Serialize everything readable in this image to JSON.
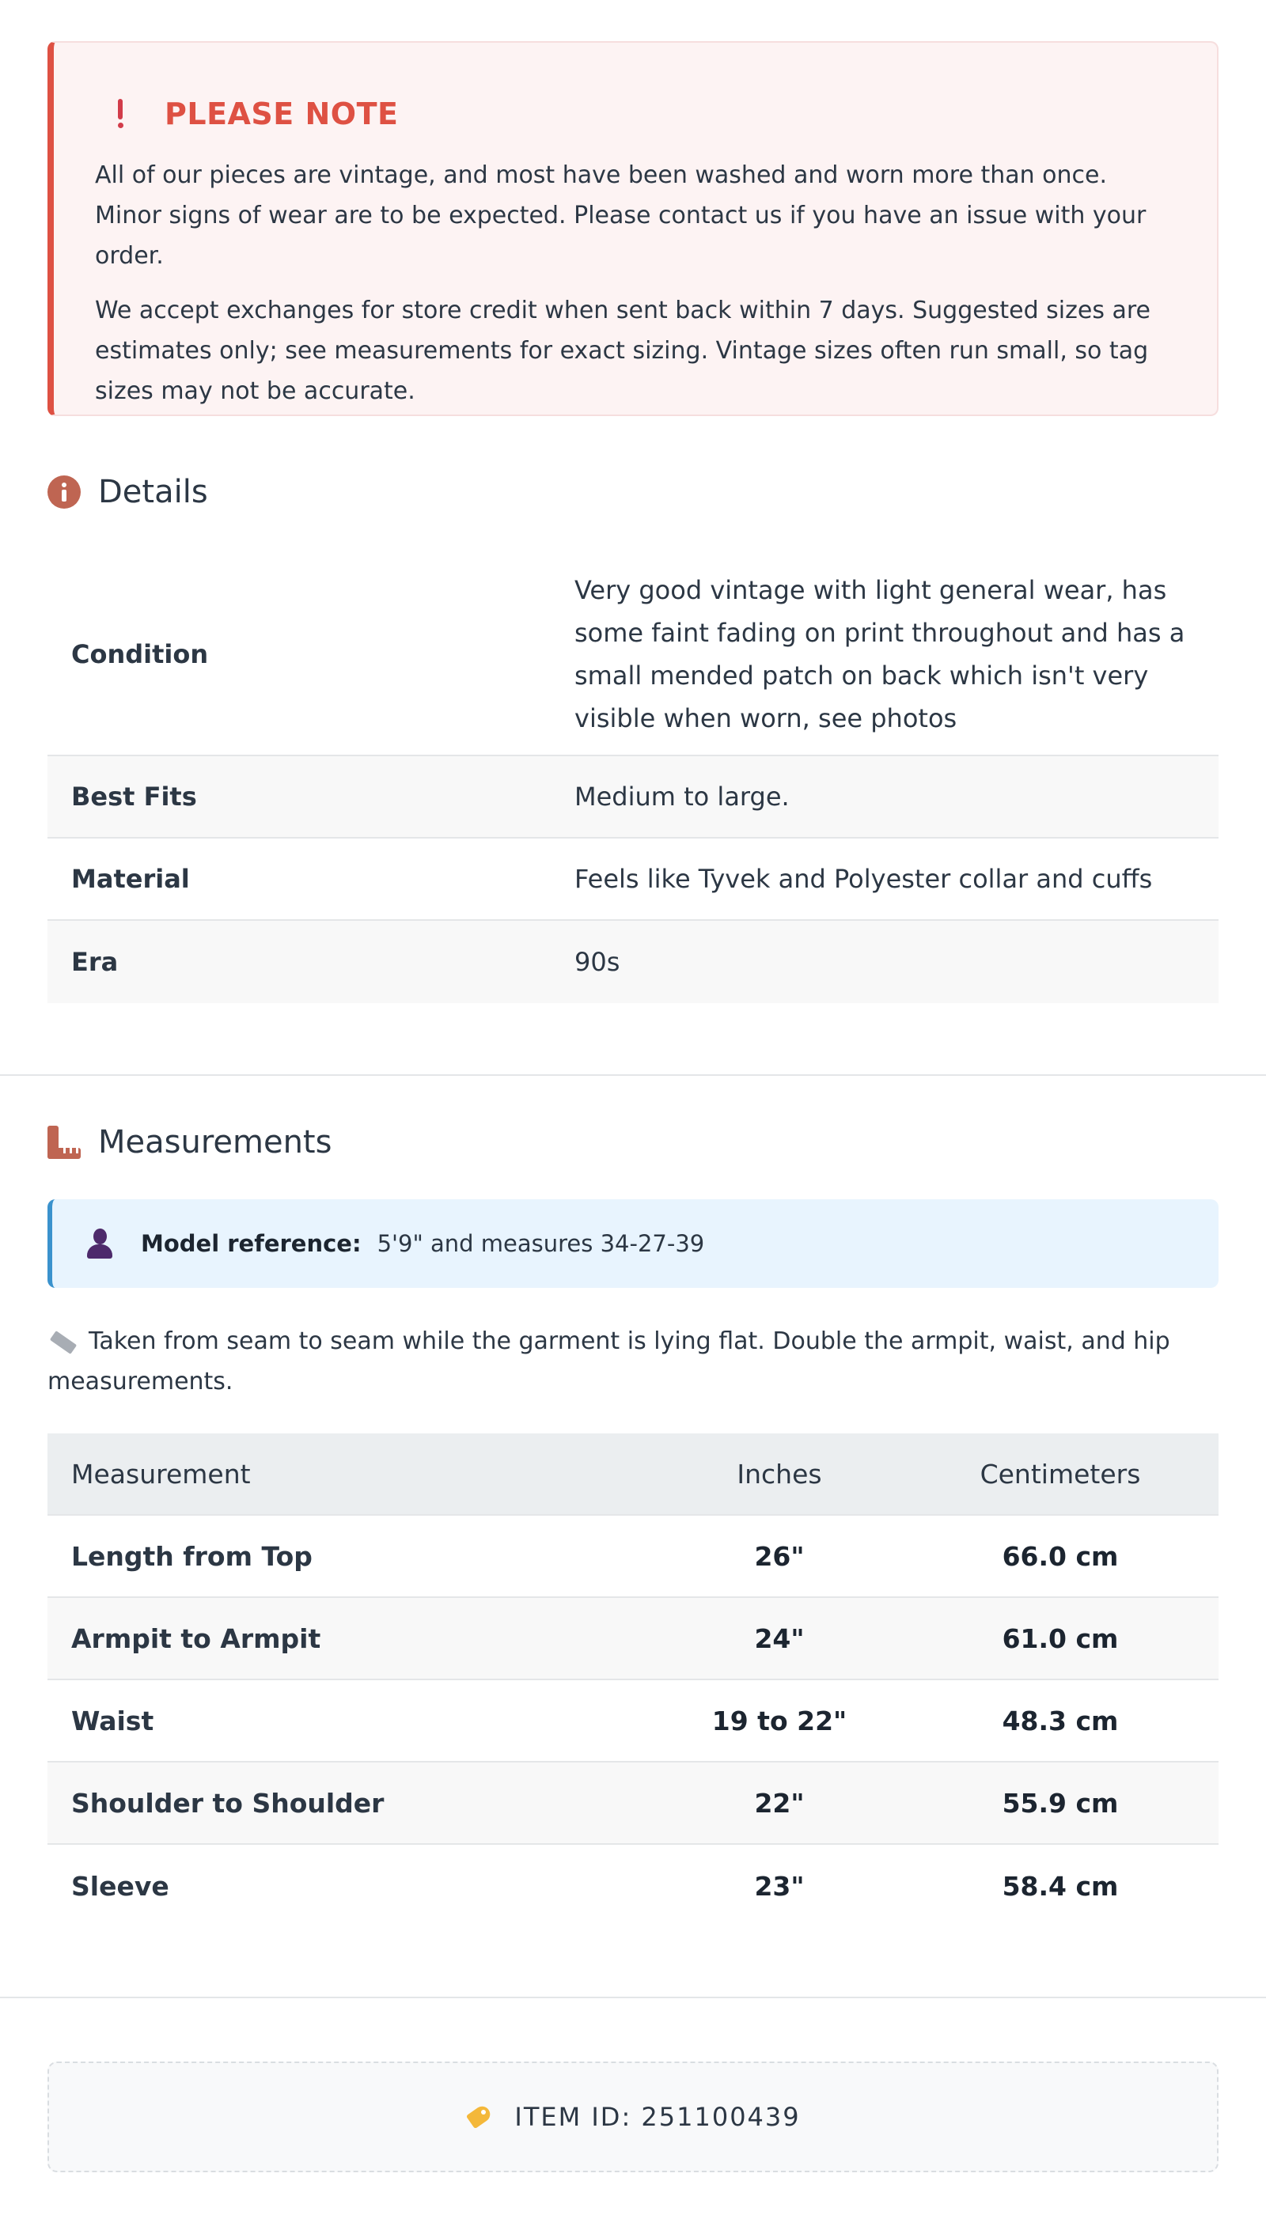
{
  "notice": {
    "title": "PLEASE NOTE",
    "paragraph1": "All of our pieces are vintage, and most have been washed and worn more than once. Minor signs of wear are to be expected. Please contact us if you have an issue with your order.",
    "paragraph2": "We accept exchanges for store credit when sent back within 7 days. Suggested sizes are estimates only; see measurements for exact sizing. Vintage sizes often run small, so tag sizes may not be accurate."
  },
  "details": {
    "title": "Details",
    "rows": [
      {
        "label": "Condition",
        "value": "Very good vintage with light general wear, has some faint fading on print throughout and has a small mended patch on back which isn't very visible when worn, see photos"
      },
      {
        "label": "Best Fits",
        "value": "Medium to large."
      },
      {
        "label": "Material",
        "value": "Feels like Tyvek and Polyester collar and cuffs"
      },
      {
        "label": "Era",
        "value": "90s"
      }
    ]
  },
  "measurements": {
    "title": "Measurements",
    "model_label": "Model reference:",
    "model_value": "5'9\" and measures 34-27-39",
    "note": "Taken from seam to seam while the garment is lying flat. Double the armpit, waist, and hip measurements.",
    "headers": [
      "Measurement",
      "Inches",
      "Centimeters"
    ],
    "rows": [
      {
        "name": "Length from Top",
        "inches": "26\"",
        "cm": "66.0 cm"
      },
      {
        "name": "Armpit to Armpit",
        "inches": "24\"",
        "cm": "61.0 cm"
      },
      {
        "name": "Waist",
        "inches": "19 to 22\"",
        "cm": "48.3 cm"
      },
      {
        "name": "Shoulder to Shoulder",
        "inches": "22\"",
        "cm": "55.9 cm"
      },
      {
        "name": "Sleeve",
        "inches": "23\"",
        "cm": "58.4 cm"
      }
    ]
  },
  "item": {
    "label": "ITEM ID: 251100439"
  },
  "colors": {
    "accent_red": "#de5143",
    "icon_brown": "#bf6552",
    "info_blue": "#3a92cd"
  }
}
